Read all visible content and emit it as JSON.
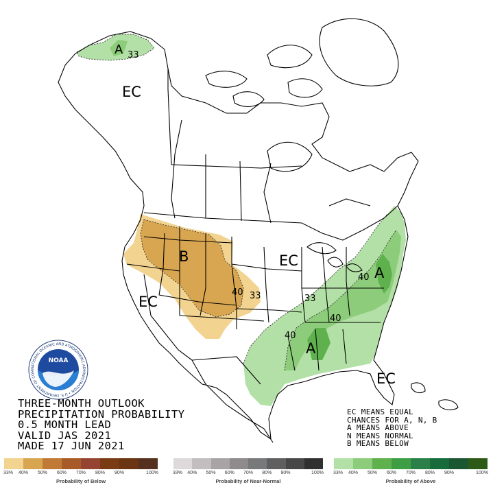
{
  "map": {
    "region_labels": {
      "ec_alaska": "EC",
      "ec_west": "EC",
      "ec_central": "EC",
      "ec_southeast": "EC",
      "b_northwest": "B",
      "a_alaska": "A",
      "a_east": "A",
      "a_gulf": "A"
    },
    "contour_labels": {
      "alaska_33": "33",
      "nw_40": "40",
      "nw_33": "33",
      "east_33": "33",
      "east_40_mid": "40",
      "east_40_north": "40",
      "east_40_south": "40"
    },
    "colors": {
      "below_33": "#f2d390",
      "below_40": "#d8a650",
      "above_33": "#b3e0a6",
      "above_40": "#8ccc7a",
      "above_50": "#5fb14e",
      "border": "#000000"
    }
  },
  "title": {
    "line1": "THREE-MONTH OUTLOOK",
    "line2": "PRECIPITATION PROBABILITY",
    "line3": "0.5 MONTH LEAD",
    "line4": "VALID JAS 2021",
    "line5": "MADE 17 JUN 2021"
  },
  "legend_text": {
    "line1": "EC MEANS EQUAL",
    "line2": "CHANCES FOR A, N, B",
    "line3": "A MEANS ABOVE",
    "line4": "N MEANS NORMAL",
    "line5": "B MEANS BELOW"
  },
  "scales": {
    "below": {
      "caption": "Probability of Below",
      "ticks": [
        "33%",
        "40%",
        "50%",
        "60%",
        "70%",
        "80%",
        "90%",
        "100%"
      ],
      "colors": [
        "#f2d390",
        "#d8a650",
        "#c07a35",
        "#a85a28",
        "#944430",
        "#7a3c14",
        "#6b3412",
        "#56301f"
      ]
    },
    "normal": {
      "caption": "Probability of Near-Normal",
      "ticks": [
        "33%",
        "40%",
        "50%",
        "60%",
        "70%",
        "80%",
        "90%",
        "100%"
      ],
      "colors": [
        "#ded9da",
        "#c2bdbe",
        "#a8a4a5",
        "#8f8b8c",
        "#77797a",
        "#5f5f60",
        "#484848",
        "#303030"
      ]
    },
    "above": {
      "caption": "Probability of Above",
      "ticks": [
        "33%",
        "40%",
        "50%",
        "60%",
        "70%",
        "80%",
        "90%",
        "100%"
      ],
      "colors": [
        "#b3e0a6",
        "#8ccc7a",
        "#5fb14e",
        "#3e9e44",
        "#2a8048",
        "#186b3b",
        "#1a5631",
        "#2e5a17"
      ]
    }
  },
  "logo": {
    "text": "NOAA",
    "ring_text": "NATIONAL OCEANIC AND ATMOSPHERIC ADMINISTRATION • U.S. DEPARTMENT OF COMMERCE"
  }
}
